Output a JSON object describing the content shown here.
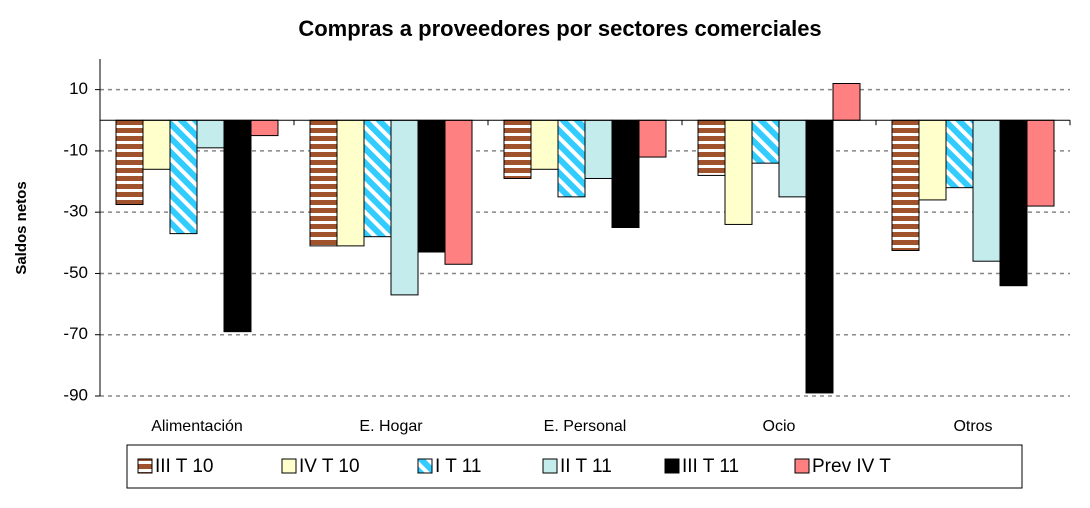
{
  "chart_data": {
    "type": "bar",
    "title": "Compras a  proveedores por sectores comerciales",
    "y_label": "Saldos netos",
    "categories": [
      "Alimentación",
      "E. Hogar",
      "E. Personal",
      "Ocio",
      "Otros"
    ],
    "series": [
      {
        "name": "III T 10",
        "color": "#a0522d",
        "pattern": "horizontal-stripes",
        "values": [
          -27.5,
          -41,
          -19,
          -18,
          -42.5
        ]
      },
      {
        "name": "IV T 10",
        "color": "#ffffcc",
        "values": [
          -16,
          -41,
          -16,
          -34,
          -26
        ]
      },
      {
        "name": "I T 11",
        "color": "#33ccff",
        "pattern": "diagonal-stripes",
        "values": [
          -37,
          -38,
          -25,
          -14,
          -22
        ]
      },
      {
        "name": "II T 11",
        "color": "#c4ecec",
        "values": [
          -9,
          -57,
          -19,
          -25,
          -46
        ]
      },
      {
        "name": "III T 11",
        "color": "#000000",
        "values": [
          -69,
          -43,
          -35,
          -89,
          -54
        ]
      },
      {
        "name": "Prev IV T",
        "color": "#ff8080",
        "values": [
          -5,
          -47,
          -12,
          12,
          -28
        ]
      }
    ],
    "ylim": [
      -90,
      20
    ],
    "yticks": [
      10,
      -10,
      -30,
      -50,
      -70,
      -90
    ],
    "grid": true,
    "legend": "bottom"
  }
}
